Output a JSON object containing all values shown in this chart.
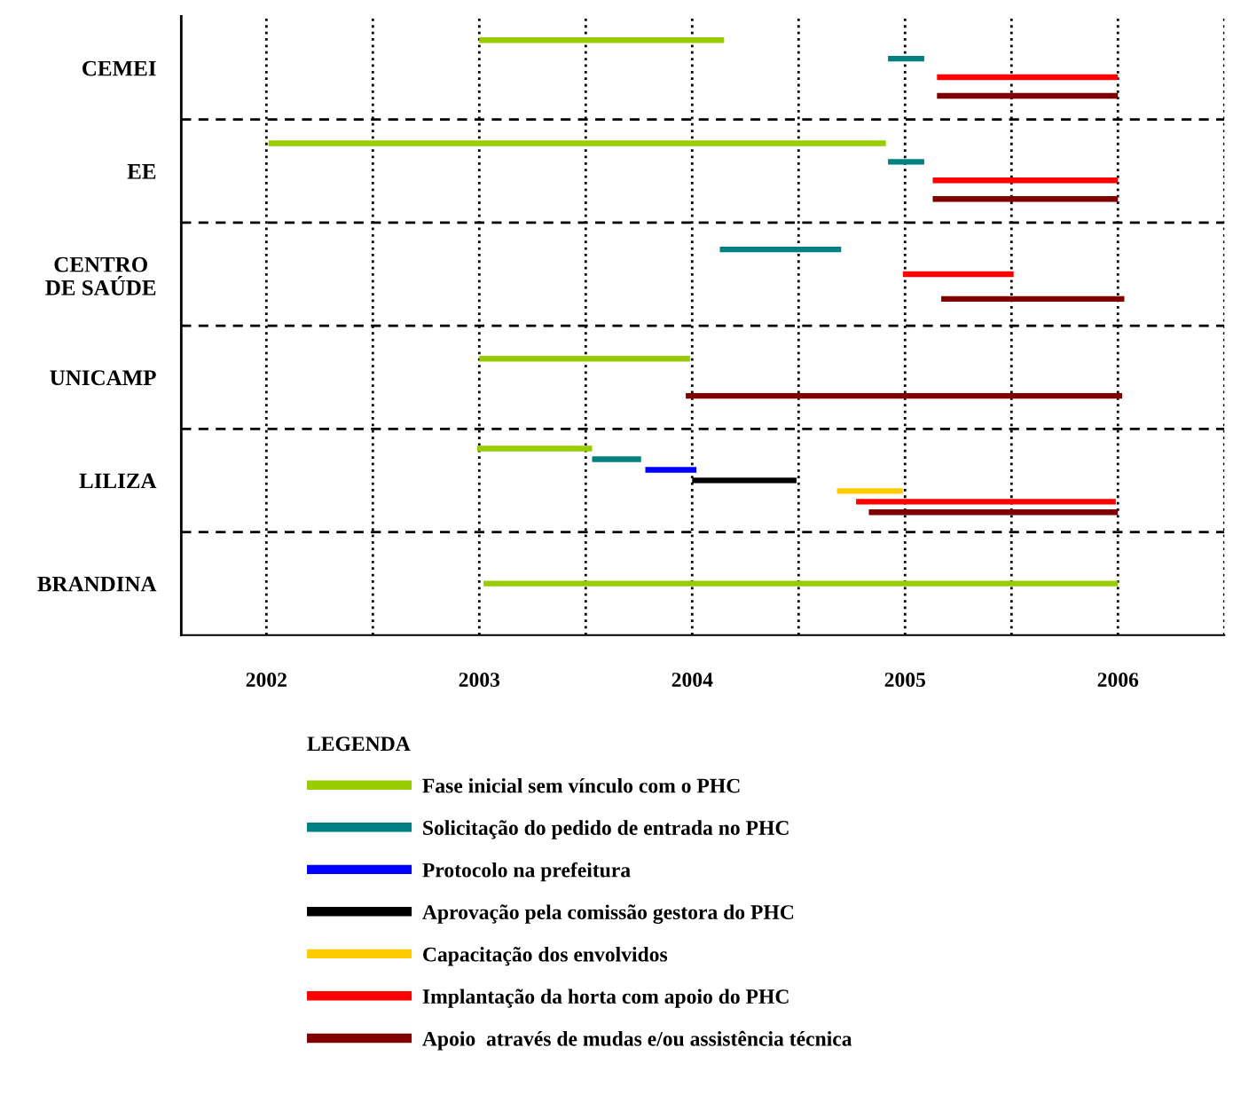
{
  "chart_data": {
    "type": "bar",
    "orientation": "horizontal",
    "categories": [
      "CEMEI",
      "EE",
      "CENTRO\nDE SAÚDE",
      "UNICAMP",
      "LILIZA",
      "BRANDINA"
    ],
    "series": [
      {
        "name": "Fase inicial sem vínculo com o PHC",
        "color": "#99cc00",
        "base": [
          2003.0,
          2002.01,
          null,
          2003.0,
          2002.99,
          2003.02
        ],
        "values": [
          1.15,
          2.9,
          null,
          0.99,
          0.54,
          2.98
        ]
      },
      {
        "name": "Solicitação do pedido de entrada no PHC",
        "color": "#008080",
        "base": [
          2004.92,
          2004.92,
          2004.13,
          null,
          2003.53,
          null
        ],
        "values": [
          0.17,
          0.17,
          0.57,
          null,
          0.23,
          null
        ]
      },
      {
        "name": "Protocolo na prefeitura",
        "color": "#0000ff",
        "base": [
          null,
          null,
          null,
          null,
          2003.78,
          null
        ],
        "values": [
          null,
          null,
          null,
          null,
          0.24,
          null
        ]
      },
      {
        "name": "Aprovação pela comissão gestora do PHC",
        "color": "#000000",
        "base": [
          null,
          null,
          null,
          null,
          2004.0,
          null
        ],
        "values": [
          null,
          null,
          null,
          null,
          0.49,
          null
        ]
      },
      {
        "name": "Capacitação dos envolvidos",
        "color": "#ffcc00",
        "base": [
          null,
          null,
          null,
          null,
          2004.68,
          null
        ],
        "values": [
          null,
          null,
          null,
          null,
          0.31,
          null
        ]
      },
      {
        "name": "Implantação da horta com apoio do PHC",
        "color": "#ff0000",
        "base": [
          2005.15,
          2005.13,
          2004.99,
          null,
          2004.77,
          null
        ],
        "values": [
          0.85,
          0.87,
          0.52,
          null,
          1.22,
          null
        ]
      },
      {
        "name": "Apoio  através de mudas e/ou assistência técnica",
        "color": "#800000",
        "base": [
          2005.15,
          2005.13,
          2005.17,
          2003.97,
          2004.83,
          null
        ],
        "values": [
          0.85,
          0.87,
          0.86,
          2.05,
          1.17,
          null
        ]
      }
    ],
    "xlim": [
      2001.6,
      2006.5
    ],
    "xticks": [
      2002,
      {
        "value": 2002.5,
        "label": null
      },
      2003,
      {
        "value": 2003.5,
        "label": null
      },
      2004,
      {
        "value": 2004.5,
        "label": null
      },
      2005,
      {
        "value": 2005.5,
        "label": null
      },
      2006,
      {
        "value": 2006.5,
        "label": null
      }
    ],
    "grid": "x",
    "legend": "bottom",
    "legend_title": "LEGENDA"
  }
}
